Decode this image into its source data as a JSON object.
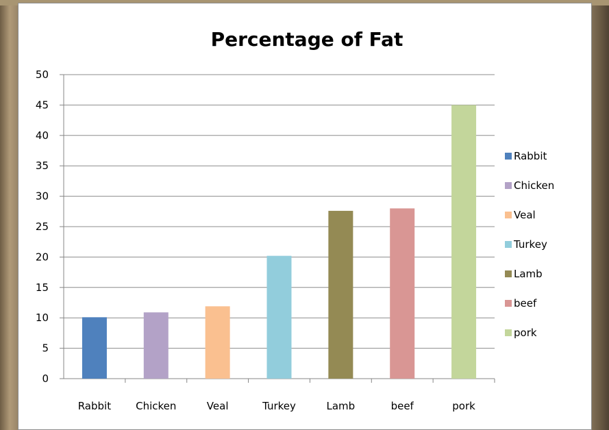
{
  "chart_data": {
    "type": "bar",
    "title": "Percentage of Fat",
    "categories": [
      "Rabbit",
      "Chicken",
      "Veal",
      "Turkey",
      "Lamb",
      "beef",
      "pork"
    ],
    "values": [
      10.1,
      10.9,
      11.9,
      20.2,
      27.6,
      28.0,
      45.0
    ],
    "colors": [
      "#4f81bd",
      "#b3a2c7",
      "#fac090",
      "#92cddc",
      "#948a54",
      "#d99694",
      "#c3d69b"
    ],
    "yticks": [
      0,
      5,
      10,
      15,
      20,
      25,
      30,
      35,
      40,
      45,
      50
    ],
    "ylim": [
      0,
      50
    ],
    "grid": true,
    "legend_position": "right",
    "legend": [
      "Rabbit",
      "Chicken",
      "Veal",
      "Turkey",
      "Lamb",
      "beef",
      "pork"
    ]
  }
}
